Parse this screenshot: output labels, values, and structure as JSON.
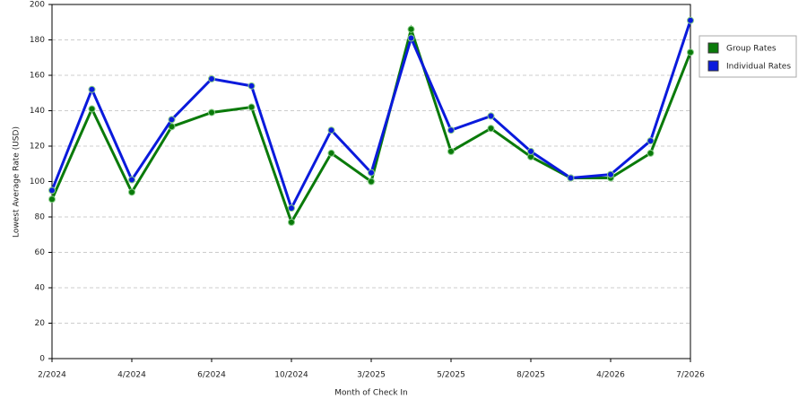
{
  "chart_data": {
    "type": "line",
    "x_label": "Month of Check In",
    "y_label": "Lowest Average Rate (USD)",
    "categories": [
      "2/2024",
      null,
      "4/2024",
      null,
      "6/2024",
      null,
      "10/2024",
      null,
      "3/2025",
      null,
      "5/2025",
      null,
      "8/2025",
      null,
      "4/2026",
      null,
      "7/2026"
    ],
    "series": [
      {
        "name": "Group Rates",
        "color": "#0a7a0a",
        "values": [
          90,
          141,
          94,
          131,
          139,
          142,
          77,
          116,
          100,
          186,
          117,
          130,
          114,
          102,
          102,
          116,
          173
        ]
      },
      {
        "name": "Individual Rates",
        "color": "#0a1adc",
        "values": [
          95,
          152,
          101,
          135,
          158,
          154,
          85,
          129,
          105,
          181,
          129,
          137,
          117,
          102,
          104,
          123,
          191
        ]
      }
    ],
    "ylim": [
      0,
      200
    ],
    "yticks": [
      0,
      20,
      40,
      60,
      80,
      100,
      120,
      140,
      160,
      180,
      200
    ],
    "grid": true,
    "legend": "right"
  }
}
